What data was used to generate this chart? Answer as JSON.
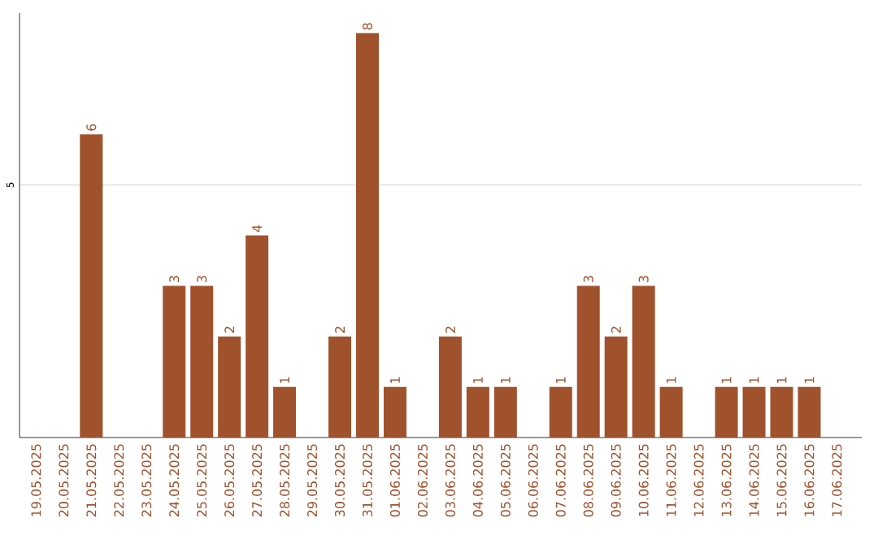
{
  "chart_data": {
    "type": "bar",
    "categories": [
      "19.05.2025",
      "20.05.2025",
      "21.05.2025",
      "22.05.2025",
      "23.05.2025",
      "24.05.2025",
      "25.05.2025",
      "26.05.2025",
      "27.05.2025",
      "28.05.2025",
      "29.05.2025",
      "30.05.2025",
      "31.05.2025",
      "01.06.2025",
      "02.06.2025",
      "03.06.2025",
      "04.06.2025",
      "05.06.2025",
      "06.06.2025",
      "07.06.2025",
      "08.06.2025",
      "09.06.2025",
      "10.06.2025",
      "11.06.2025",
      "12.06.2025",
      "13.06.2025",
      "14.06.2025",
      "15.06.2025",
      "16.06.2025",
      "17.06.2025"
    ],
    "values": [
      0,
      0,
      6,
      0,
      0,
      3,
      3,
      2,
      4,
      1,
      0,
      2,
      8,
      1,
      0,
      2,
      1,
      1,
      0,
      1,
      3,
      2,
      3,
      1,
      0,
      1,
      1,
      1,
      1,
      0
    ],
    "value_labels": [
      null,
      null,
      "6",
      null,
      null,
      "3",
      "3",
      "2",
      "4",
      "1",
      null,
      "2",
      "8",
      "1",
      null,
      "2",
      "1",
      "1",
      null,
      "1",
      "3",
      "2",
      "3",
      "1",
      null,
      "1",
      "1",
      "1",
      "1",
      null
    ],
    "color": "#a0522d",
    "ylim": [
      0,
      8.4
    ],
    "yticks": [
      5
    ],
    "grid": "y"
  }
}
